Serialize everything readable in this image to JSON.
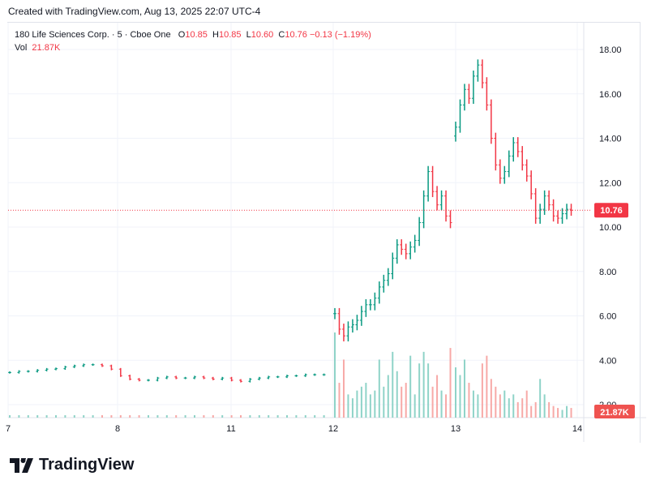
{
  "created_text": "Created with TradingView.com, Aug 13, 2025 22:07 UTC-4",
  "legend": {
    "symbol": "180 Life Sciences Corp. · 5 · Cboe One",
    "o_label": "O",
    "o": "10.85",
    "h_label": "H",
    "h": "10.85",
    "l_label": "L",
    "l": "10.60",
    "c_label": "C",
    "c": "10.76",
    "change": "−0.13 (−1.19%)",
    "vol_label": "Vol",
    "vol": "21.87K"
  },
  "brand": "TradingView",
  "colors": {
    "up": "#089981",
    "down": "#f23645",
    "up_vol": "#8fd3c8",
    "down_vol": "#f7a9a7",
    "grid": "#f0f3fa"
  },
  "chart_data": {
    "type": "ohlc-bar",
    "x_ticks": [
      "7",
      "8",
      "11",
      "12",
      "13",
      "14"
    ],
    "y_ticks": [
      "18.00",
      "16.00",
      "14.00",
      "12.00",
      "10.00",
      "8.00",
      "6.00",
      "4.00",
      "2.00"
    ],
    "ylim": [
      2,
      18
    ],
    "last_price": "10.76",
    "last_volume": "21.87K",
    "pre_closes": [
      3.45,
      3.5,
      3.5,
      3.55,
      3.6,
      3.62,
      3.7,
      3.75,
      3.8,
      3.8,
      3.75,
      3.6,
      3.3,
      3.15,
      3.1,
      3.1,
      3.2,
      3.25,
      3.2,
      3.2,
      3.25,
      3.2,
      3.15,
      3.2,
      3.1,
      3.05,
      3.15,
      3.2,
      3.25,
      3.25,
      3.3,
      3.3,
      3.35,
      3.35,
      3.35
    ],
    "day12_closes": [
      6.1,
      5.4,
      5.1,
      5.5,
      5.6,
      5.8,
      6.2,
      6.5,
      6.5,
      6.8,
      7.3,
      7.6,
      7.9,
      8.6,
      9.2,
      9.0,
      8.8,
      9.1,
      9.4,
      10.2,
      11.4,
      12.5,
      11.6,
      11.0,
      11.4,
      10.5,
      10.2
    ],
    "day13_closes": [
      14.5,
      15.5,
      16.2,
      15.8,
      16.8,
      17.3,
      16.5,
      15.5,
      14.0,
      12.8,
      12.2,
      12.5,
      13.2,
      13.8,
      13.4,
      12.8,
      12.3,
      11.5,
      10.4,
      10.8,
      11.4,
      11.0,
      10.5,
      10.4,
      10.6,
      10.8,
      10.76
    ],
    "volumes_k": [
      220,
      90,
      150,
      60,
      50,
      70,
      80,
      90,
      60,
      70,
      150,
      80,
      110,
      170,
      120,
      80,
      90,
      160,
      60,
      140,
      170,
      140,
      80,
      110,
      70,
      60,
      180,
      130,
      110,
      150,
      90,
      70,
      60,
      140,
      160,
      100,
      80,
      60,
      70,
      50,
      60,
      40,
      50,
      70,
      30,
      40,
      100,
      60,
      40,
      30,
      25,
      20,
      30,
      25,
      20,
      22
    ]
  }
}
